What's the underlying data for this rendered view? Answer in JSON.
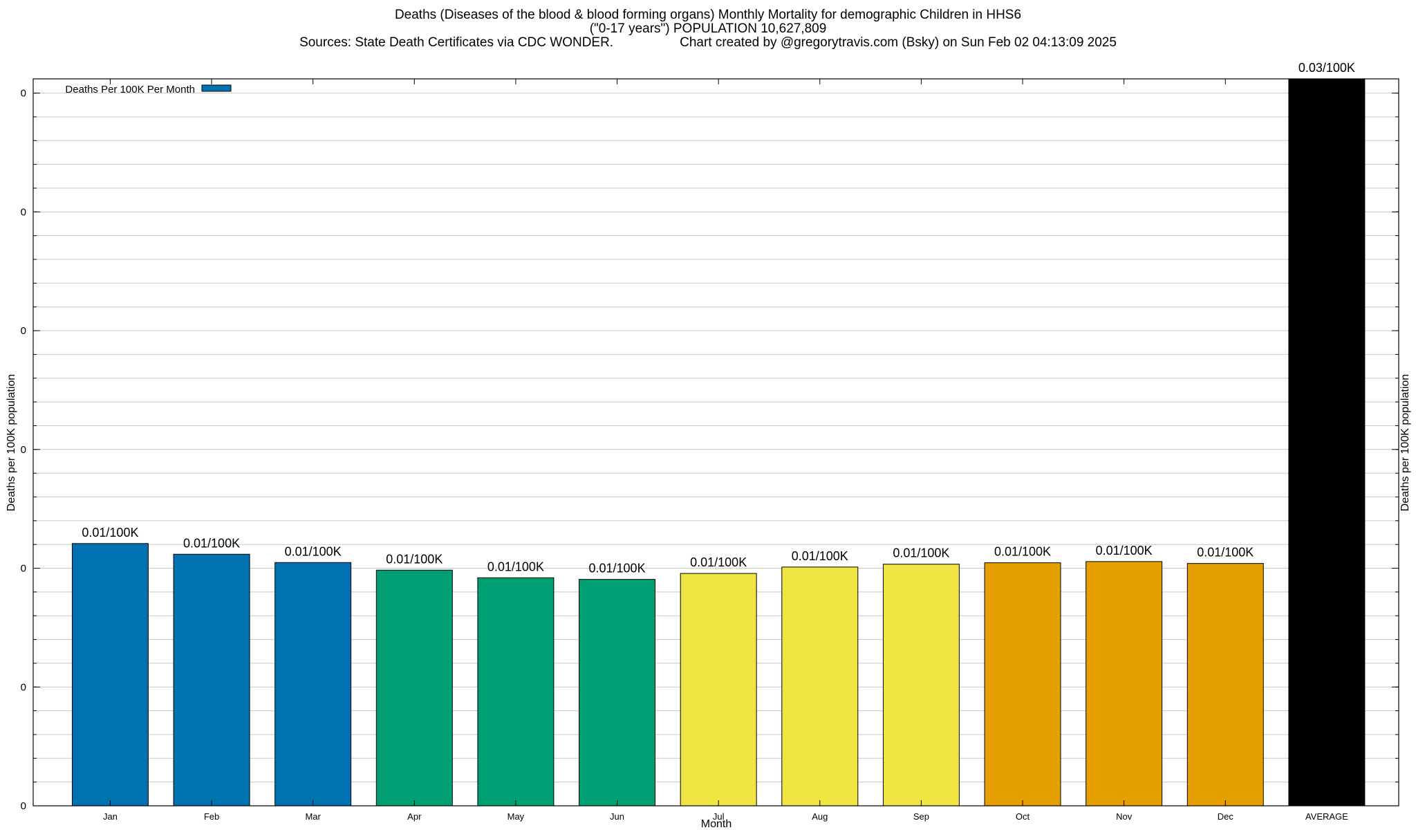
{
  "chart_data": {
    "type": "bar",
    "title": "Deaths (Diseases of the blood & blood forming organs) Monthly Mortality for demographic Children in HHS6",
    "subtitle": "(\"0-17 years\") POPULATION 10,627,809",
    "source_line": "Sources: State Death Certificates via CDC WONDER.",
    "credit_line": "Chart created by @gregorytravis.com (Bsky) on Sun Feb 02 04:13:09 2025",
    "xlabel": "Month",
    "ylabel": "Deaths per 100K population",
    "y2label": "Deaths per 100K population",
    "legend": {
      "label": "Deaths Per 100K Per Month",
      "color": "#0072b2",
      "position": "top-left"
    },
    "categories": [
      "Jan",
      "Feb",
      "Mar",
      "Apr",
      "May",
      "Jun",
      "Jul",
      "Aug",
      "Sep",
      "Oct",
      "Nov",
      "Dec",
      "AVERAGE"
    ],
    "values": [
      0.01104,
      0.01059,
      0.01024,
      0.00992,
      0.0096,
      0.00953,
      0.00978,
      0.01005,
      0.01017,
      0.01023,
      0.01028,
      0.0102,
      0.03065
    ],
    "value_labels": [
      "0.01/100K",
      "0.01/100K",
      "0.01/100K",
      "0.01/100K",
      "0.01/100K",
      "0.01/100K",
      "0.01/100K",
      "0.01/100K",
      "0.01/100K",
      "0.01/100K",
      "0.01/100K",
      "0.01/100K",
      "0.03/100K"
    ],
    "colors": [
      "#0072b2",
      "#0072b2",
      "#0072b2",
      "#009e73",
      "#009e73",
      "#009e73",
      "#f0e442",
      "#f0e442",
      "#f0e442",
      "#e69f00",
      "#e69f00",
      "#e69f00",
      "#000000"
    ],
    "ylim": [
      0,
      0.0306
    ],
    "yticks": [
      0,
      0.005,
      0.01,
      0.015,
      0.02,
      0.025,
      0.03
    ],
    "ytick_labels": [
      "0",
      "0",
      "0",
      "0",
      "0",
      "0",
      "0"
    ],
    "grid": true
  }
}
